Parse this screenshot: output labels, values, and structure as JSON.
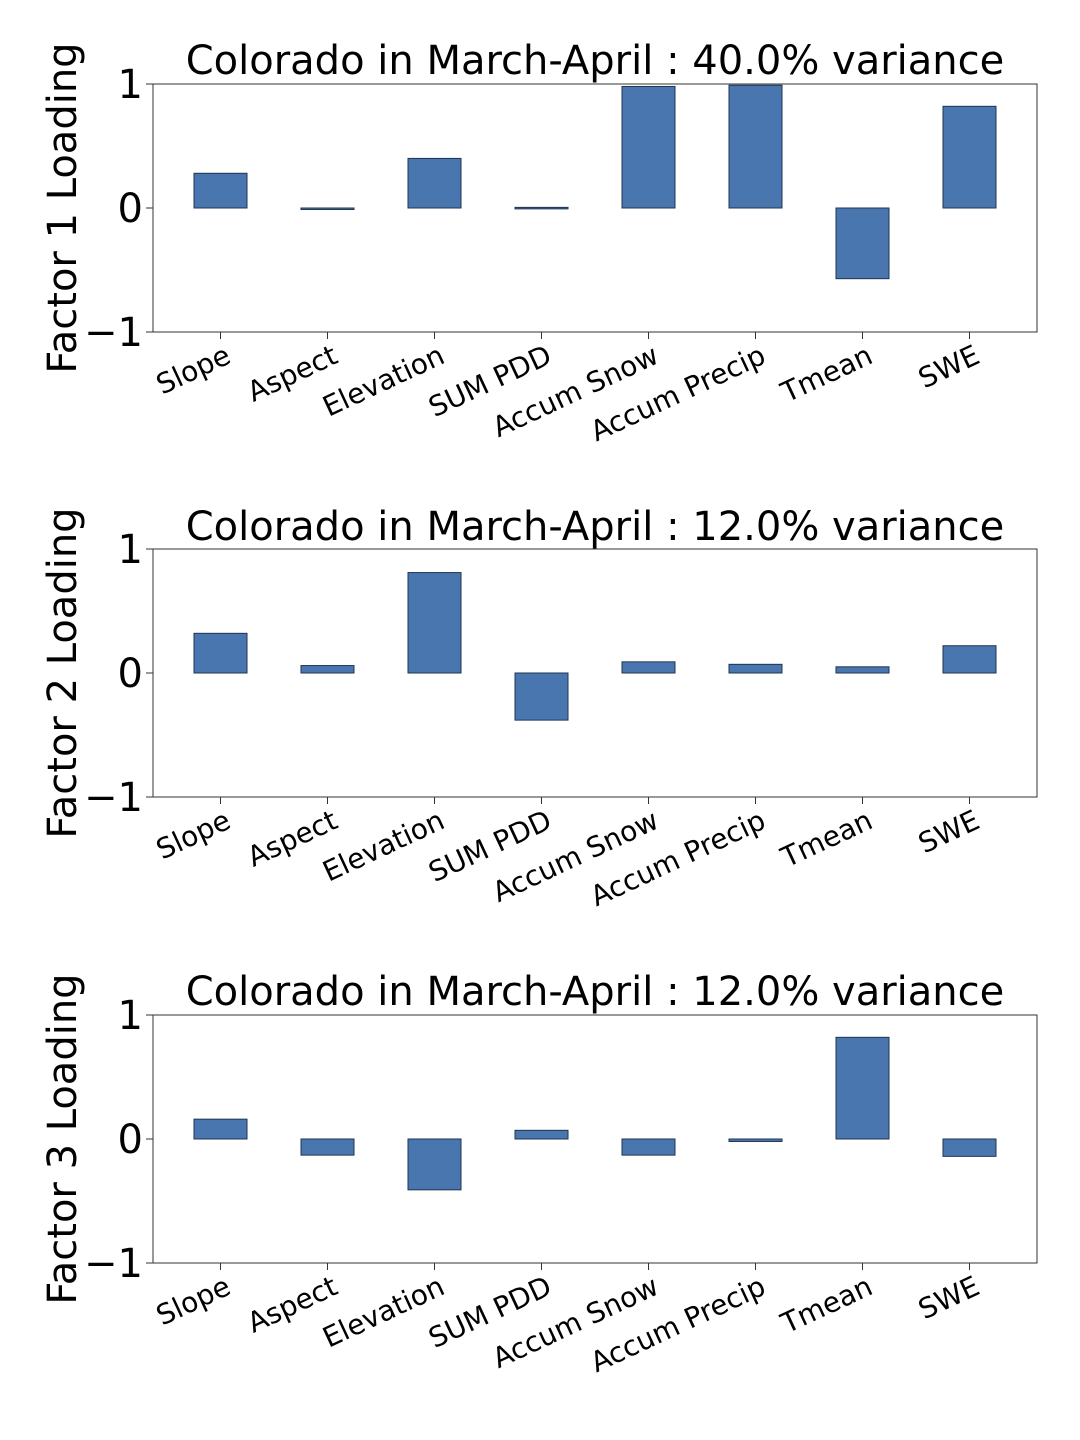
{
  "colors": {
    "bar": "#4a76b0",
    "bar_edge": "#1f3552",
    "axes": "#333333"
  },
  "chart_data": [
    {
      "type": "bar",
      "title": "Colorado in March-April : 40.0% variance",
      "xlabel": "",
      "ylabel": "Factor 1 Loading",
      "ylim": [
        -1,
        1
      ],
      "yticks": [
        1,
        0,
        -1
      ],
      "ytick_labels": [
        "1",
        "0",
        "−1"
      ],
      "categories": [
        "Slope",
        "Aspect",
        "Elevation",
        "SUM PDD",
        "Accum Snow",
        "Accum Precip",
        "Tmean",
        "SWE"
      ],
      "values": [
        0.28,
        -0.01,
        0.4,
        0.005,
        0.98,
        0.99,
        -0.57,
        0.82
      ],
      "grid": false
    },
    {
      "type": "bar",
      "title": "Colorado in March-April : 12.0% variance",
      "xlabel": "",
      "ylabel": "Factor 2 Loading",
      "ylim": [
        -1,
        1
      ],
      "yticks": [
        1,
        0,
        -1
      ],
      "ytick_labels": [
        "1",
        "0",
        "−1"
      ],
      "categories": [
        "Slope",
        "Aspect",
        "Elevation",
        "SUM PDD",
        "Accum Snow",
        "Accum Precip",
        "Tmean",
        "SWE"
      ],
      "values": [
        0.32,
        0.06,
        0.81,
        -0.38,
        0.09,
        0.07,
        0.05,
        0.22
      ],
      "grid": false
    },
    {
      "type": "bar",
      "title": "Colorado in March-April : 12.0% variance",
      "xlabel": "",
      "ylabel": "Factor 3 Loading",
      "ylim": [
        -1,
        1
      ],
      "yticks": [
        1,
        0,
        -1
      ],
      "ytick_labels": [
        "1",
        "0",
        "−1"
      ],
      "categories": [
        "Slope",
        "Aspect",
        "Elevation",
        "SUM PDD",
        "Accum Snow",
        "Accum Precip",
        "Tmean",
        "SWE"
      ],
      "values": [
        0.16,
        -0.13,
        -0.41,
        0.07,
        -0.13,
        -0.02,
        0.82,
        -0.14
      ],
      "grid": false
    }
  ]
}
